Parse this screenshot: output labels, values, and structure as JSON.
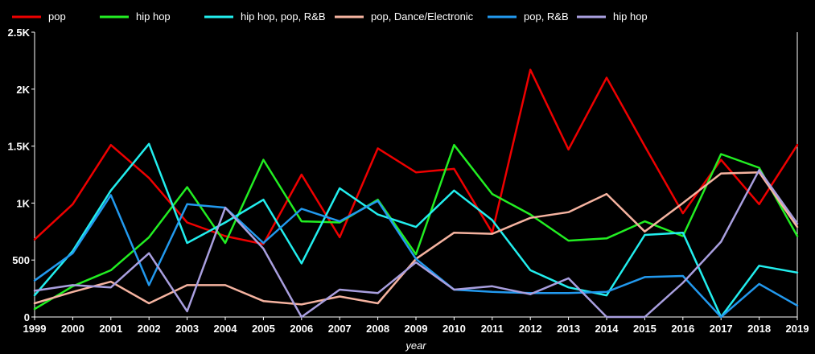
{
  "chart_data": {
    "type": "line",
    "title": "",
    "xlabel": "year",
    "ylabel": "",
    "x": [
      1999,
      2000,
      2001,
      2002,
      2003,
      2004,
      2005,
      2006,
      2007,
      2008,
      2009,
      2010,
      2011,
      2012,
      2013,
      2014,
      2015,
      2016,
      2017,
      2018,
      2019
    ],
    "x_tick_labels": [
      "1999",
      "2000",
      "2001",
      "2002",
      "2003",
      "2004",
      "2005",
      "2006",
      "2007",
      "2008",
      "2009",
      "2010",
      "2011",
      "2012",
      "2013",
      "2014",
      "2015",
      "2016",
      "2017",
      "2018",
      "2019"
    ],
    "ylim": [
      0,
      2500
    ],
    "y_ticks": [
      0,
      500,
      1000,
      1500,
      2000,
      2500
    ],
    "y_tick_labels": [
      "0",
      "500",
      "1K",
      "1.5K",
      "2K",
      "2.5K"
    ],
    "grid": false,
    "legend_position": "top-left",
    "series": [
      {
        "name": "pop",
        "color": "#ee0000",
        "values": [
          680,
          990,
          1510,
          1220,
          830,
          710,
          640,
          1250,
          700,
          1480,
          1270,
          1300,
          740,
          2170,
          1470,
          2100,
          1500,
          910,
          1380,
          990,
          1510
        ]
      },
      {
        "name": "hip hop",
        "color": "#22ee22",
        "values": [
          70,
          270,
          410,
          700,
          1140,
          650,
          1380,
          840,
          830,
          1030,
          550,
          1510,
          1080,
          900,
          670,
          690,
          840,
          710,
          1430,
          1310,
          710
        ]
      },
      {
        "name": "hip hop, pop, R&B",
        "color": "#22eeee",
        "values": [
          190,
          580,
          1110,
          1520,
          650,
          830,
          1030,
          470,
          1130,
          900,
          790,
          1110,
          850,
          410,
          260,
          190,
          720,
          740,
          0,
          450,
          390
        ]
      },
      {
        "name": "pop, Dance/Electronic",
        "color": "#f5b3a0",
        "values": [
          120,
          220,
          310,
          120,
          280,
          280,
          140,
          110,
          180,
          120,
          510,
          740,
          730,
          870,
          920,
          1080,
          750,
          1000,
          1260,
          1270,
          790
        ]
      },
      {
        "name": "pop, R&B",
        "color": "#2299ee",
        "values": [
          320,
          560,
          1070,
          280,
          990,
          960,
          650,
          950,
          840,
          1020,
          510,
          240,
          220,
          210,
          210,
          220,
          350,
          360,
          0,
          290,
          100
        ]
      },
      {
        "name": "hip hop",
        "color": "#a99fdf",
        "values": [
          230,
          280,
          260,
          560,
          50,
          960,
          600,
          0,
          240,
          210,
          480,
          240,
          270,
          200,
          340,
          0,
          0,
          300,
          660,
          1290,
          820
        ]
      }
    ]
  }
}
